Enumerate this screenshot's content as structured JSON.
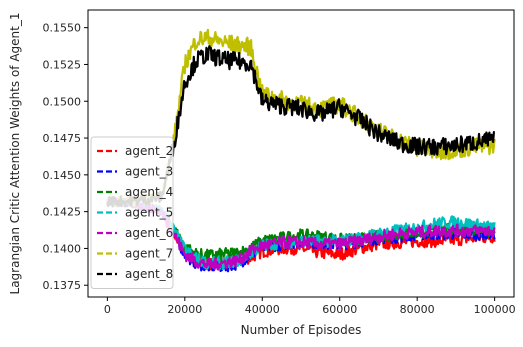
{
  "chart_data": {
    "type": "line",
    "title": "",
    "xlabel": "Number of Episodes",
    "ylabel": "Lagrangian Critic Attention Weights of Agent_1",
    "xlim": [
      -5000,
      105000
    ],
    "ylim": [
      0.1367,
      0.1562
    ],
    "x_ticks": [
      0,
      20000,
      40000,
      60000,
      80000,
      100000
    ],
    "x_tick_labels": [
      "0",
      "20000",
      "40000",
      "60000",
      "80000",
      "100000"
    ],
    "y_ticks": [
      0.1375,
      0.14,
      0.1425,
      0.145,
      0.1475,
      0.15,
      0.1525,
      0.155
    ],
    "y_tick_labels": [
      "0.1375",
      "0.1400",
      "0.1425",
      "0.1450",
      "0.1475",
      "0.1500",
      "0.1525",
      "0.1550"
    ],
    "grid": false,
    "legend_position": "center-left",
    "x": [
      0,
      5000,
      10000,
      14000,
      17000,
      20000,
      23000,
      26000,
      30000,
      34000,
      37000,
      40000,
      45000,
      50000,
      55000,
      60000,
      65000,
      70000,
      75000,
      80000,
      85000,
      90000,
      95000,
      100000
    ],
    "series": [
      {
        "name": "agent_2",
        "color": "#ff0000",
        "values": [
          0.1432,
          0.1431,
          0.1427,
          0.1425,
          0.1412,
          0.1398,
          0.1392,
          0.1389,
          0.1391,
          0.1392,
          0.1394,
          0.1398,
          0.14,
          0.14,
          0.1397,
          0.1396,
          0.14,
          0.1403,
          0.1404,
          0.1405,
          0.1405,
          0.1406,
          0.1407,
          0.1408
        ]
      },
      {
        "name": "agent_3",
        "color": "#0000ff",
        "values": [
          0.1432,
          0.1431,
          0.1428,
          0.1425,
          0.1412,
          0.1396,
          0.139,
          0.1388,
          0.1388,
          0.139,
          0.1396,
          0.1401,
          0.1403,
          0.1405,
          0.1404,
          0.1403,
          0.1405,
          0.1407,
          0.1408,
          0.141,
          0.141,
          0.141,
          0.141,
          0.141
        ]
      },
      {
        "name": "agent_4",
        "color": "#008000",
        "values": [
          0.1432,
          0.1431,
          0.1428,
          0.1426,
          0.1414,
          0.1401,
          0.1396,
          0.1395,
          0.1396,
          0.1397,
          0.14,
          0.1405,
          0.1407,
          0.1409,
          0.1408,
          0.1406,
          0.1406,
          0.1408,
          0.141,
          0.1411,
          0.1412,
          0.1413,
          0.1413,
          0.1412
        ]
      },
      {
        "name": "agent_5",
        "color": "#00bfbf",
        "values": [
          0.1432,
          0.1431,
          0.1428,
          0.1426,
          0.1413,
          0.1399,
          0.1393,
          0.139,
          0.139,
          0.1392,
          0.1397,
          0.1402,
          0.1404,
          0.1405,
          0.1405,
          0.1405,
          0.1407,
          0.141,
          0.1412,
          0.1414,
          0.1417,
          0.1418,
          0.1416,
          0.1414
        ]
      },
      {
        "name": "agent_6",
        "color": "#bf00bf",
        "values": [
          0.1432,
          0.1431,
          0.1428,
          0.1425,
          0.1411,
          0.1396,
          0.1391,
          0.1389,
          0.139,
          0.1392,
          0.1398,
          0.1402,
          0.1404,
          0.1404,
          0.1403,
          0.1403,
          0.1405,
          0.1408,
          0.141,
          0.1411,
          0.1412,
          0.1412,
          0.1412,
          0.1412
        ]
      },
      {
        "name": "agent_7",
        "color": "#bfbf00",
        "values": [
          0.1432,
          0.1432,
          0.1433,
          0.1436,
          0.147,
          0.1525,
          0.1542,
          0.1543,
          0.154,
          0.1538,
          0.1537,
          0.1505,
          0.1501,
          0.1498,
          0.1495,
          0.1498,
          0.1489,
          0.148,
          0.1474,
          0.1468,
          0.1466,
          0.1467,
          0.1469,
          0.147
        ]
      },
      {
        "name": "agent_8",
        "color": "#000000",
        "values": [
          0.1432,
          0.1432,
          0.1433,
          0.1435,
          0.1468,
          0.1513,
          0.1528,
          0.1532,
          0.1528,
          0.1527,
          0.1526,
          0.15,
          0.1497,
          0.1495,
          0.1491,
          0.1496,
          0.1488,
          0.1478,
          0.1472,
          0.1469,
          0.1469,
          0.147,
          0.1472,
          0.1474
        ]
      }
    ]
  }
}
